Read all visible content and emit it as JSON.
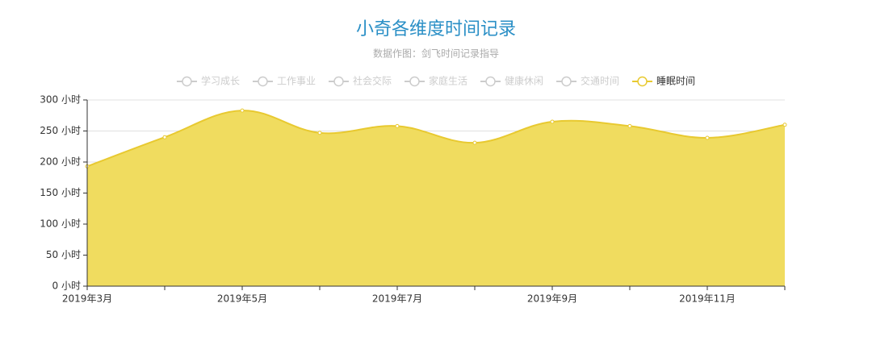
{
  "chart_data": {
    "type": "area",
    "title": "小奇各维度时间记录",
    "subtitle": "数据作图：剑飞时间记录指导",
    "legend": [
      {
        "name": "学习成长",
        "active": false
      },
      {
        "name": "工作事业",
        "active": false
      },
      {
        "name": "社会交际",
        "active": false
      },
      {
        "name": "家庭生活",
        "active": false
      },
      {
        "name": "健康休闲",
        "active": false
      },
      {
        "name": "交通时间",
        "active": false
      },
      {
        "name": "睡眠时间",
        "active": true
      }
    ],
    "categories": [
      "2019年3月",
      null,
      "2019年5月",
      null,
      "2019年7月",
      null,
      "2019年9月",
      null,
      "2019年11月",
      null
    ],
    "series": [
      {
        "name": "睡眠时间",
        "color": "#e8c930",
        "fill": "#f0dc5f",
        "values": [
          193,
          240,
          283,
          247,
          258,
          231,
          265,
          258,
          239,
          260
        ]
      }
    ],
    "ylim": [
      0,
      300
    ],
    "yticks": [
      {
        "value": 0,
        "label": "0 小时"
      },
      {
        "value": 50,
        "label": "50 小时"
      },
      {
        "value": 100,
        "label": "100 小时"
      },
      {
        "value": 150,
        "label": "150 小时"
      },
      {
        "value": 200,
        "label": "200 小时"
      },
      {
        "value": 250,
        "label": "250 小时"
      },
      {
        "value": 300,
        "label": "300 小时"
      }
    ],
    "grid": true,
    "smooth": true
  }
}
